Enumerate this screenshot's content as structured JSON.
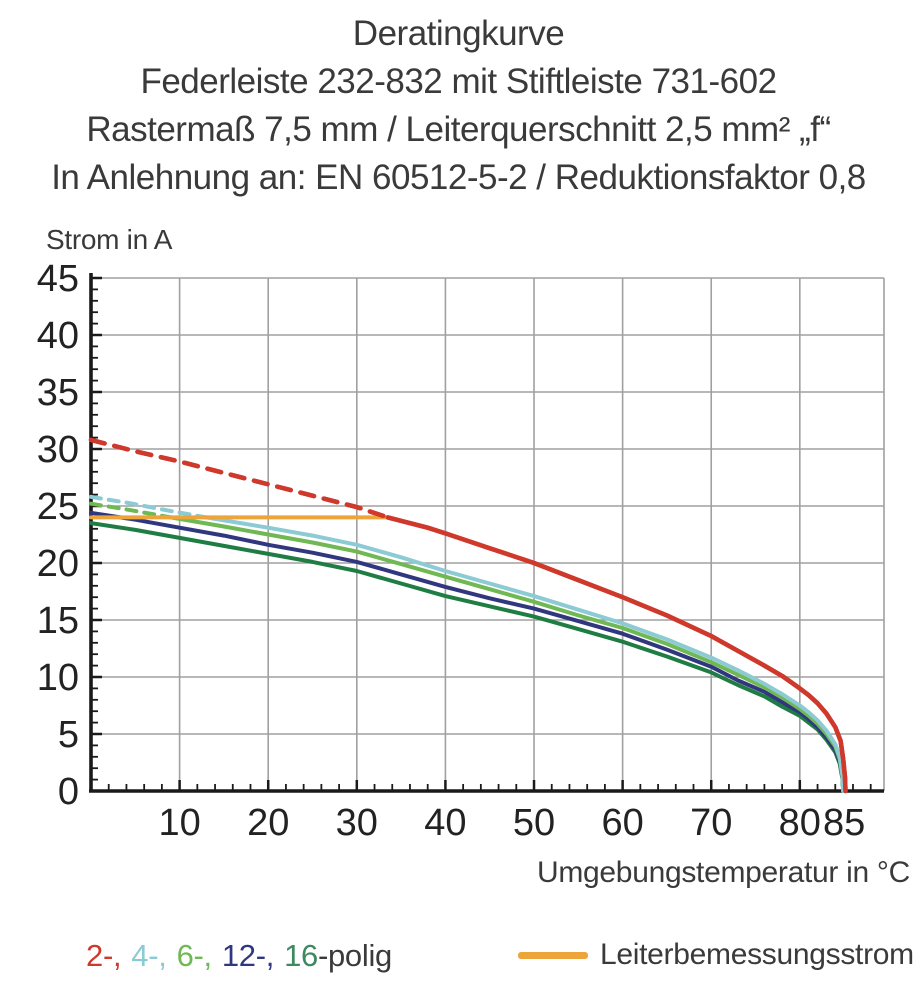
{
  "title": {
    "lines": [
      "Deratingkurve",
      "Federleiste 232-832 mit Stiftleiste 731-602",
      "Rastermaß 7,5 mm / Leiterquerschnitt 2,5 mm² „f“",
      "In Anlehnung an: EN 60512-5-2 / Reduktionsfaktor 0,8"
    ]
  },
  "chart_data": {
    "type": "line",
    "title": "Deratingkurve",
    "xlabel": "Umgebungstemperatur in °C",
    "ylabel": "Strom in A",
    "xlim": [
      0,
      89.5
    ],
    "ylim": [
      0,
      45
    ],
    "x_ticks": [
      10,
      20,
      30,
      40,
      50,
      60,
      70,
      80,
      85
    ],
    "x_minor_step": 2,
    "y_ticks": [
      0,
      5,
      10,
      15,
      20,
      25,
      30,
      35,
      40,
      45
    ],
    "y_minor_step": 1,
    "grid": true,
    "grid_color": "#a0a0a0",
    "axis_color": "#1a1a1a",
    "tick_label_color": "#222222",
    "rated_current": {
      "label": "Leiterbemessungsstrom",
      "color": "#eda43b",
      "value": 24,
      "points": [
        [
          0,
          24
        ],
        [
          33.5,
          24
        ]
      ]
    },
    "series": [
      {
        "name": "2-polig",
        "color": "#cf392c",
        "width": 4.5,
        "dash_pattern": "14 10",
        "dashed": [
          [
            0,
            30.8
          ],
          [
            5,
            29.8
          ],
          [
            10,
            28.9
          ],
          [
            15,
            27.9
          ],
          [
            20,
            26.9
          ],
          [
            25,
            25.9
          ],
          [
            30,
            24.9
          ],
          [
            33.5,
            24.0
          ]
        ],
        "solid": [
          [
            33.5,
            24.0
          ],
          [
            38,
            23.1
          ],
          [
            40,
            22.6
          ],
          [
            45,
            21.3
          ],
          [
            50,
            20.0
          ],
          [
            55,
            18.5
          ],
          [
            60,
            17.0
          ],
          [
            65,
            15.4
          ],
          [
            70,
            13.6
          ],
          [
            73,
            12.3
          ],
          [
            76,
            11.0
          ],
          [
            78,
            10.1
          ],
          [
            80,
            9.0
          ],
          [
            81,
            8.4
          ],
          [
            82,
            7.7
          ],
          [
            83,
            6.8
          ],
          [
            84,
            5.6
          ],
          [
            84.6,
            4.4
          ],
          [
            84.9,
            2.8
          ],
          [
            85.1,
            1.2
          ],
          [
            85.15,
            0
          ]
        ]
      },
      {
        "name": "4-polig",
        "color": "#8ccbd3",
        "width": 4,
        "dash_pattern": "10 8",
        "dashed": [
          [
            0,
            25.8
          ],
          [
            4,
            25.3
          ],
          [
            8,
            24.7
          ],
          [
            13,
            24.0
          ]
        ],
        "solid": [
          [
            13,
            24.0
          ],
          [
            20,
            23.1
          ],
          [
            25,
            22.4
          ],
          [
            30,
            21.6
          ],
          [
            35,
            20.5
          ],
          [
            40,
            19.3
          ],
          [
            45,
            18.2
          ],
          [
            50,
            17.1
          ],
          [
            55,
            15.9
          ],
          [
            60,
            14.7
          ],
          [
            65,
            13.3
          ],
          [
            70,
            11.7
          ],
          [
            73,
            10.6
          ],
          [
            76,
            9.4
          ],
          [
            78,
            8.5
          ],
          [
            80,
            7.5
          ],
          [
            81,
            6.9
          ],
          [
            82,
            6.2
          ],
          [
            83,
            5.3
          ],
          [
            84,
            4.1
          ],
          [
            84.5,
            3.0
          ],
          [
            84.8,
            1.4
          ],
          [
            84.9,
            0
          ]
        ]
      },
      {
        "name": "6-polig",
        "color": "#70b854",
        "width": 4,
        "dash_pattern": "10 8",
        "dashed": [
          [
            0,
            25.2
          ],
          [
            4,
            24.7
          ],
          [
            9,
            24.0
          ]
        ],
        "solid": [
          [
            9,
            24.0
          ],
          [
            15,
            23.2
          ],
          [
            20,
            22.5
          ],
          [
            25,
            21.8
          ],
          [
            30,
            21.0
          ],
          [
            35,
            19.9
          ],
          [
            40,
            18.8
          ],
          [
            45,
            17.7
          ],
          [
            50,
            16.6
          ],
          [
            55,
            15.4
          ],
          [
            60,
            14.3
          ],
          [
            65,
            12.9
          ],
          [
            70,
            11.3
          ],
          [
            73,
            10.2
          ],
          [
            76,
            9.1
          ],
          [
            78,
            8.2
          ],
          [
            80,
            7.2
          ],
          [
            81,
            6.6
          ],
          [
            82,
            5.9
          ],
          [
            83,
            5.0
          ],
          [
            84,
            3.9
          ],
          [
            84.5,
            2.8
          ],
          [
            84.8,
            1.3
          ],
          [
            84.9,
            0
          ]
        ]
      },
      {
        "name": "12-polig",
        "color": "#31377f",
        "width": 4,
        "dash_pattern": "",
        "dashed": [],
        "solid": [
          [
            0,
            24.4
          ],
          [
            5,
            23.8
          ],
          [
            10,
            23.1
          ],
          [
            15,
            22.4
          ],
          [
            20,
            21.6
          ],
          [
            25,
            20.9
          ],
          [
            30,
            20.1
          ],
          [
            35,
            19.0
          ],
          [
            40,
            17.9
          ],
          [
            45,
            16.9
          ],
          [
            50,
            16.0
          ],
          [
            55,
            14.9
          ],
          [
            60,
            13.8
          ],
          [
            65,
            12.4
          ],
          [
            70,
            10.9
          ],
          [
            73,
            9.7
          ],
          [
            76,
            8.7
          ],
          [
            78,
            7.8
          ],
          [
            80,
            6.9
          ],
          [
            81,
            6.3
          ],
          [
            82,
            5.6
          ],
          [
            83,
            4.7
          ],
          [
            84,
            3.6
          ],
          [
            84.5,
            2.6
          ],
          [
            84.8,
            1.2
          ],
          [
            84.9,
            0
          ]
        ]
      },
      {
        "name": "16-polig",
        "color": "#1f7d44",
        "width": 4,
        "dash_pattern": "",
        "dashed": [],
        "solid": [
          [
            0,
            23.5
          ],
          [
            5,
            22.9
          ],
          [
            10,
            22.2
          ],
          [
            15,
            21.5
          ],
          [
            20,
            20.8
          ],
          [
            25,
            20.1
          ],
          [
            30,
            19.3
          ],
          [
            35,
            18.2
          ],
          [
            40,
            17.1
          ],
          [
            45,
            16.2
          ],
          [
            50,
            15.3
          ],
          [
            55,
            14.2
          ],
          [
            60,
            13.1
          ],
          [
            65,
            11.8
          ],
          [
            70,
            10.4
          ],
          [
            73,
            9.3
          ],
          [
            76,
            8.3
          ],
          [
            78,
            7.4
          ],
          [
            80,
            6.6
          ],
          [
            81,
            6.0
          ],
          [
            82,
            5.4
          ],
          [
            83,
            4.5
          ],
          [
            84,
            3.4
          ],
          [
            84.5,
            2.4
          ],
          [
            84.8,
            1.1
          ],
          [
            84.9,
            0
          ]
        ]
      }
    ]
  },
  "legend": {
    "poles": {
      "segments": [
        {
          "label": "2-,",
          "color": "#cf392c"
        },
        {
          "label": "4-,",
          "color": "#8ccbd3"
        },
        {
          "label": "6-,",
          "color": "#70b854"
        },
        {
          "label": "12-,",
          "color": "#31377f"
        },
        {
          "label": "16",
          "color": "#3d8a60"
        },
        {
          "label": "-polig",
          "color": "#3a3a3a"
        }
      ]
    },
    "conductor": {
      "label": "Leiterbemessungsstrom",
      "color": "#eda43b"
    }
  }
}
